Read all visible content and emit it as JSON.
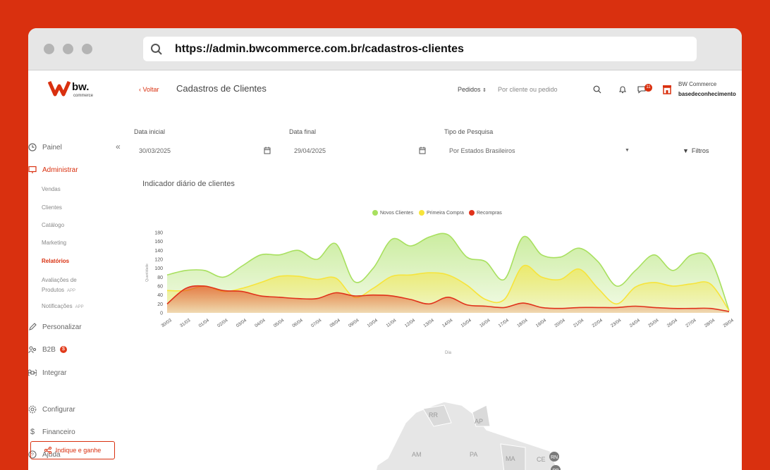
{
  "browser": {
    "url": "https://admin.bwcommerce.com.br/cadastros-clientes"
  },
  "brand": {
    "logo_text": "bw.",
    "logo_sub": "commerce"
  },
  "sidebar": {
    "items": [
      {
        "label": "Painel"
      },
      {
        "label": "Administrar"
      },
      {
        "label": "Personalizar"
      },
      {
        "label": "B2B",
        "badge": "$"
      },
      {
        "label": "Integrar"
      },
      {
        "label": "Configurar"
      },
      {
        "label": "Financeiro"
      },
      {
        "label": "Ajuda"
      }
    ],
    "subitems": [
      {
        "label": "Vendas"
      },
      {
        "label": "Clientes"
      },
      {
        "label": "Catálogo"
      },
      {
        "label": "Marketing"
      },
      {
        "label": "Relatórios"
      },
      {
        "label": "Avaliações de",
        "label2": "Produtos",
        "tag": "APP"
      },
      {
        "label": "Notificações",
        "tag": "APP"
      }
    ],
    "cta": "Indique e ganhe",
    "collapse": "«"
  },
  "header": {
    "back": "‹ Voltar",
    "title": "Cadastros de Clientes",
    "pedidos": "Pedidos",
    "search_placeholder": "Por cliente ou pedido",
    "notif_count": "11",
    "store_name": "BW Commerce",
    "store_user": "basedeconhecimento"
  },
  "filters": {
    "start_label": "Data inicial",
    "start_value": "30/03/2025",
    "end_label": "Data final",
    "end_value": "29/04/2025",
    "type_label": "Tipo de Pesquisa",
    "type_value": "Por Estados Brasileiros",
    "filtros": "Filtros"
  },
  "chart_title": "Indicador diário de clientes",
  "colors": {
    "accent": "#d9300f",
    "green": "#a8e05f",
    "yellow": "#f7e43a",
    "red": "#e0321a"
  },
  "chart_data": {
    "type": "area",
    "ylabel": "Quantidade",
    "xlabel": "Dia",
    "ylim": [
      0,
      180
    ],
    "yticks": [
      0,
      20,
      40,
      60,
      80,
      100,
      120,
      140,
      160,
      180
    ],
    "categories": [
      "30/03",
      "31/03",
      "01/04",
      "02/04",
      "03/04",
      "04/04",
      "05/04",
      "06/04",
      "07/04",
      "08/04",
      "09/04",
      "10/04",
      "11/04",
      "12/04",
      "13/04",
      "14/04",
      "15/04",
      "16/04",
      "17/04",
      "18/04",
      "19/04",
      "20/04",
      "21/04",
      "22/04",
      "23/04",
      "24/04",
      "25/04",
      "26/04",
      "27/04",
      "28/04",
      "29/04"
    ],
    "series": [
      {
        "name": "Novos Clientes",
        "color": "#a8e05f",
        "values": [
          85,
          95,
          95,
          80,
          105,
          130,
          130,
          140,
          120,
          155,
          70,
          100,
          165,
          150,
          170,
          175,
          125,
          115,
          75,
          170,
          130,
          125,
          145,
          115,
          60,
          95,
          130,
          95,
          130,
          120,
          5
        ]
      },
      {
        "name": "Primeira Compra",
        "color": "#f7e43a",
        "values": [
          50,
          50,
          60,
          48,
          55,
          68,
          82,
          82,
          75,
          78,
          35,
          55,
          82,
          85,
          90,
          85,
          62,
          30,
          30,
          105,
          80,
          75,
          98,
          55,
          20,
          58,
          68,
          60,
          65,
          65,
          5
        ]
      },
      {
        "name": "Recompras",
        "color": "#e0321a",
        "values": [
          20,
          55,
          60,
          50,
          48,
          38,
          35,
          32,
          32,
          45,
          38,
          40,
          38,
          30,
          20,
          35,
          18,
          15,
          12,
          22,
          12,
          10,
          12,
          12,
          12,
          15,
          12,
          10,
          10,
          10,
          3
        ]
      }
    ]
  },
  "map": {
    "labels": [
      "RR",
      "AP",
      "AM",
      "PA",
      "MA",
      "CE",
      "RN",
      "PB"
    ]
  }
}
